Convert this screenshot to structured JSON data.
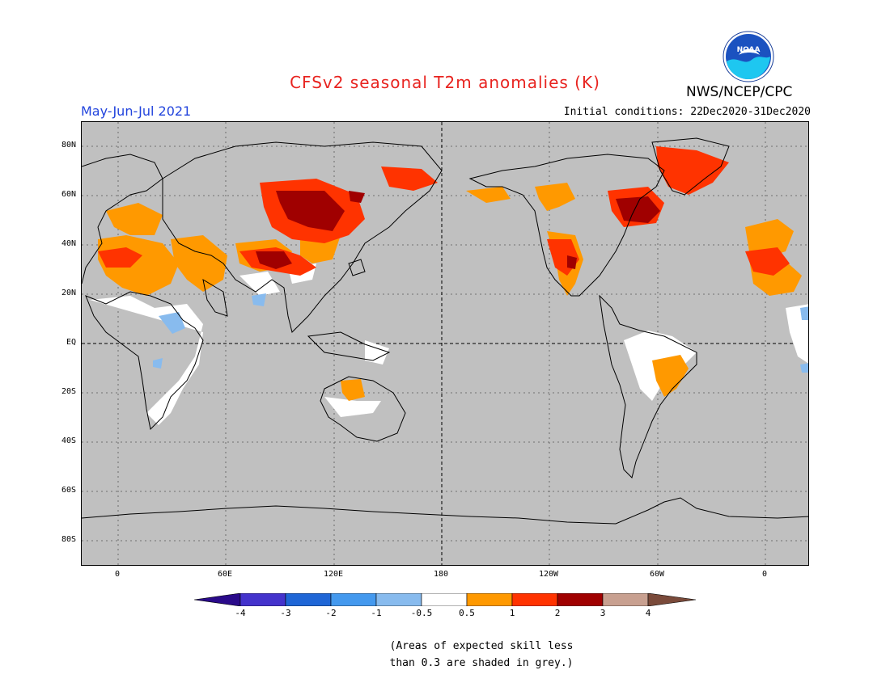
{
  "header": {
    "title": "CFSv2 seasonal T2m anomalies (K)",
    "agency": "NWS/NCEP/CPC",
    "period": "May-Jun-Jul 2021",
    "initial_conditions": "Initial conditions: 22Dec2020-31Dec2020",
    "logo_text": "NOAA"
  },
  "map": {
    "lat_labels": [
      "80N",
      "60N",
      "40N",
      "20N",
      "EQ",
      "20S",
      "40S",
      "60S",
      "80S"
    ],
    "lon_labels": [
      "0",
      "60E",
      "120E",
      "180",
      "120W",
      "60W",
      "0"
    ],
    "background_color": "#c0c0c0"
  },
  "legend": {
    "labels": [
      "-4",
      "-3",
      "-2",
      "-1",
      "-0.5",
      "0.5",
      "1",
      "2",
      "3",
      "4"
    ],
    "colors": [
      "#2a0a8a",
      "#4433cc",
      "#1f66d6",
      "#4499ee",
      "#88bbee",
      "#ffffff",
      "#ff9900",
      "#ff3300",
      "#a00000",
      "#c8a090",
      "#7a4a3a"
    ]
  },
  "footnote": {
    "line1": "(Areas of expected skill less",
    "line2": "than 0.3 are shaded in grey.)"
  }
}
